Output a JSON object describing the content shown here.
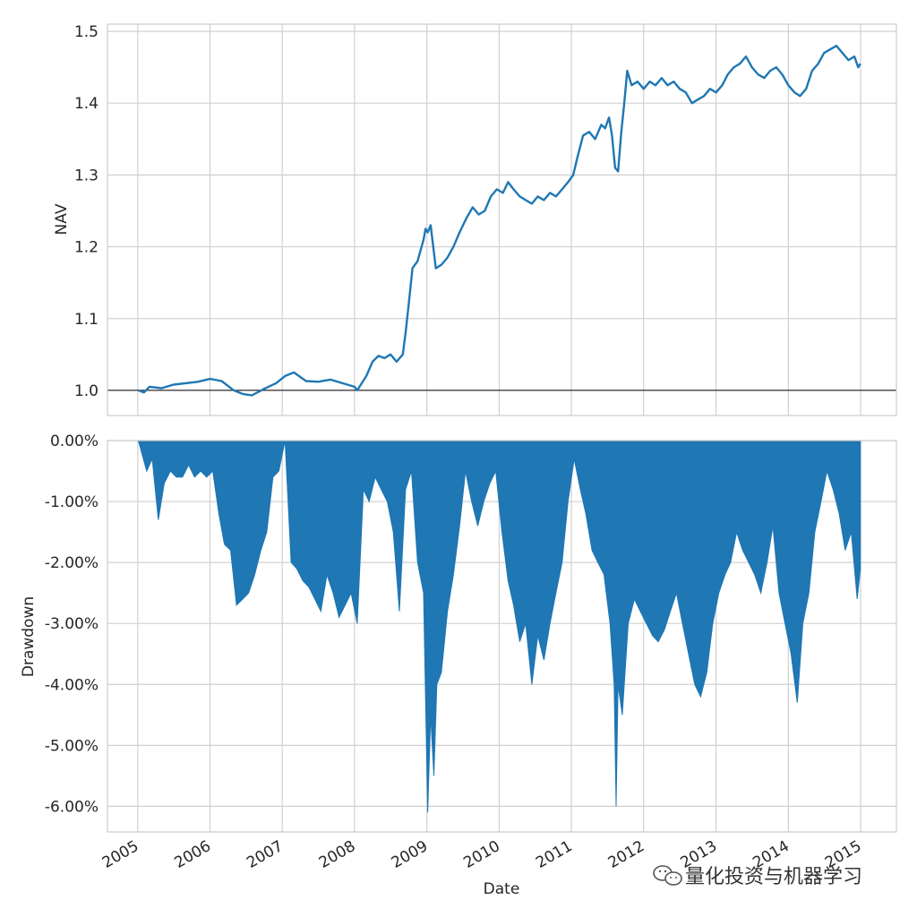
{
  "chart_data": [
    {
      "type": "line",
      "ylabel": "NAV",
      "xlim": [
        "2004-08-01",
        "2015-07-01"
      ],
      "ylim": [
        0.965,
        1.51
      ],
      "yticks": [
        1.0,
        1.1,
        1.2,
        1.3,
        1.4,
        1.5
      ],
      "ytick_labels": [
        "1.0",
        "1.1",
        "1.2",
        "1.3",
        "1.4",
        "1.5"
      ],
      "grid": true,
      "reference_line": 1.0,
      "color": "#1f77b4",
      "series": [
        {
          "dates": [
            "2005-01-04",
            "2005-02-01",
            "2005-03-01",
            "2005-05-01",
            "2005-07-01",
            "2005-09-01",
            "2005-11-01",
            "2006-01-01",
            "2006-03-01",
            "2006-05-01",
            "2006-06-15",
            "2006-08-01",
            "2006-10-01",
            "2006-12-01",
            "2007-01-15",
            "2007-03-01",
            "2007-05-01",
            "2007-07-01",
            "2007-09-01",
            "2007-11-01",
            "2008-01-01",
            "2008-01-15",
            "2008-03-01",
            "2008-04-01",
            "2008-05-01",
            "2008-06-01",
            "2008-07-01",
            "2008-08-01",
            "2008-09-01",
            "2008-09-15",
            "2008-10-01",
            "2008-10-20",
            "2008-11-15",
            "2008-12-15",
            "2008-12-25",
            "2009-01-05",
            "2009-01-20",
            "2009-02-15",
            "2009-03-15",
            "2009-04-15",
            "2009-05-15",
            "2009-06-15",
            "2009-07-20",
            "2009-08-20",
            "2009-09-20",
            "2009-10-20",
            "2009-11-20",
            "2009-12-20",
            "2010-01-20",
            "2010-02-15",
            "2010-03-15",
            "2010-04-15",
            "2010-05-15",
            "2010-06-15",
            "2010-07-15",
            "2010-08-15",
            "2010-09-15",
            "2010-10-15",
            "2010-11-15",
            "2010-12-15",
            "2011-01-10",
            "2011-02-01",
            "2011-03-01",
            "2011-04-01",
            "2011-05-01",
            "2011-06-01",
            "2011-06-20",
            "2011-07-10",
            "2011-07-25",
            "2011-08-10",
            "2011-08-25",
            "2011-09-10",
            "2011-09-25",
            "2011-10-10",
            "2011-11-01",
            "2011-12-01",
            "2012-01-01",
            "2012-02-01",
            "2012-03-01",
            "2012-04-01",
            "2012-05-01",
            "2012-06-01",
            "2012-07-01",
            "2012-08-01",
            "2012-09-01",
            "2012-10-01",
            "2012-11-01",
            "2012-12-01",
            "2013-01-01",
            "2013-02-01",
            "2013-03-01",
            "2013-04-01",
            "2013-05-01",
            "2013-06-01",
            "2013-07-01",
            "2013-08-01",
            "2013-09-01",
            "2013-10-01",
            "2013-11-01",
            "2013-12-01",
            "2014-01-01",
            "2014-02-01",
            "2014-03-01",
            "2014-04-01",
            "2014-05-01",
            "2014-06-01",
            "2014-07-01",
            "2014-08-01",
            "2014-09-01",
            "2014-10-01",
            "2014-11-01",
            "2014-12-01",
            "2014-12-20",
            "2014-12-31"
          ],
          "values": [
            1.0,
            0.997,
            1.005,
            1.003,
            1.008,
            1.01,
            1.012,
            1.016,
            1.013,
            1.0,
            0.995,
            0.993,
            1.002,
            1.01,
            1.02,
            1.025,
            1.013,
            1.012,
            1.015,
            1.01,
            1.005,
            1.0,
            1.02,
            1.04,
            1.048,
            1.045,
            1.05,
            1.04,
            1.05,
            1.08,
            1.12,
            1.17,
            1.18,
            1.21,
            1.225,
            1.22,
            1.23,
            1.17,
            1.175,
            1.185,
            1.2,
            1.22,
            1.24,
            1.255,
            1.245,
            1.25,
            1.27,
            1.28,
            1.275,
            1.29,
            1.28,
            1.27,
            1.265,
            1.26,
            1.27,
            1.265,
            1.275,
            1.27,
            1.28,
            1.29,
            1.3,
            1.325,
            1.355,
            1.36,
            1.35,
            1.37,
            1.365,
            1.38,
            1.355,
            1.31,
            1.305,
            1.36,
            1.4,
            1.445,
            1.425,
            1.43,
            1.42,
            1.43,
            1.425,
            1.435,
            1.425,
            1.43,
            1.42,
            1.415,
            1.4,
            1.405,
            1.41,
            1.42,
            1.415,
            1.425,
            1.44,
            1.45,
            1.455,
            1.465,
            1.45,
            1.44,
            1.435,
            1.445,
            1.45,
            1.44,
            1.425,
            1.415,
            1.41,
            1.42,
            1.445,
            1.455,
            1.47,
            1.475,
            1.48,
            1.47,
            1.46,
            1.465,
            1.45,
            1.455
          ]
        }
      ]
    },
    {
      "type": "area",
      "ylabel": "Drawdown",
      "xlabel": "Date",
      "xlim": [
        "2004-08-01",
        "2015-07-01"
      ],
      "ylim": [
        -0.0642,
        0.0
      ],
      "yticks": [
        0.0,
        -0.01,
        -0.02,
        -0.03,
        -0.04,
        -0.05,
        -0.06
      ],
      "ytick_labels": [
        "0.00%",
        "-1.00%",
        "-2.00%",
        "-3.00%",
        "-4.00%",
        "-5.00%",
        "-6.00%"
      ],
      "xticks": [
        "2005-01-01",
        "2006-01-01",
        "2007-01-01",
        "2008-01-01",
        "2009-01-01",
        "2010-01-01",
        "2011-01-01",
        "2012-01-01",
        "2013-01-01",
        "2014-01-01",
        "2015-01-01"
      ],
      "xtick_labels": [
        "2005",
        "2006",
        "2007",
        "2008",
        "2009",
        "2010",
        "2011",
        "2012",
        "2013",
        "2014",
        "2015"
      ],
      "grid": true,
      "color": "#1f77b4",
      "series": [
        {
          "dates": [
            "2005-01-04",
            "2005-02-15",
            "2005-03-15",
            "2005-04-15",
            "2005-05-15",
            "2005-06-15",
            "2005-07-15",
            "2005-08-15",
            "2005-09-15",
            "2005-10-15",
            "2005-11-15",
            "2005-12-15",
            "2006-01-15",
            "2006-02-15",
            "2006-03-15",
            "2006-04-15",
            "2006-05-15",
            "2006-06-15",
            "2006-07-15",
            "2006-08-15",
            "2006-09-15",
            "2006-10-15",
            "2006-11-15",
            "2006-12-15",
            "2007-01-15",
            "2007-02-15",
            "2007-03-15",
            "2007-04-15",
            "2007-05-15",
            "2007-06-15",
            "2007-07-15",
            "2007-08-15",
            "2007-09-15",
            "2007-10-15",
            "2007-11-15",
            "2007-12-15",
            "2008-01-15",
            "2008-02-15",
            "2008-03-15",
            "2008-04-15",
            "2008-05-15",
            "2008-06-15",
            "2008-07-15",
            "2008-08-15",
            "2008-09-15",
            "2008-10-15",
            "2008-11-15",
            "2008-12-15",
            "2009-01-05",
            "2009-01-20",
            "2009-02-05",
            "2009-02-20",
            "2009-03-15",
            "2009-04-15",
            "2009-05-15",
            "2009-06-15",
            "2009-07-15",
            "2009-08-15",
            "2009-09-15",
            "2009-10-15",
            "2009-11-15",
            "2009-12-15",
            "2010-01-15",
            "2010-02-15",
            "2010-03-15",
            "2010-04-15",
            "2010-05-15",
            "2010-06-15",
            "2010-07-15",
            "2010-08-15",
            "2010-09-15",
            "2010-10-15",
            "2010-11-15",
            "2010-12-15",
            "2011-01-15",
            "2011-02-15",
            "2011-03-15",
            "2011-04-15",
            "2011-05-15",
            "2011-06-15",
            "2011-07-15",
            "2011-08-05",
            "2011-08-15",
            "2011-08-25",
            "2011-09-15",
            "2011-10-15",
            "2011-11-15",
            "2011-12-15",
            "2012-01-15",
            "2012-02-15",
            "2012-03-15",
            "2012-04-15",
            "2012-05-15",
            "2012-06-15",
            "2012-07-15",
            "2012-08-15",
            "2012-09-15",
            "2012-10-15",
            "2012-11-15",
            "2012-12-15",
            "2013-01-15",
            "2013-02-15",
            "2013-03-15",
            "2013-04-15",
            "2013-05-15",
            "2013-06-15",
            "2013-07-15",
            "2013-08-15",
            "2013-09-15",
            "2013-10-15",
            "2013-11-15",
            "2013-12-15",
            "2014-01-15",
            "2014-02-15",
            "2014-03-15",
            "2014-04-15",
            "2014-05-15",
            "2014-06-15",
            "2014-07-15",
            "2014-08-15",
            "2014-09-15",
            "2014-10-15",
            "2014-11-15",
            "2014-12-15",
            "2014-12-31"
          ],
          "values": [
            0.0,
            -0.005,
            -0.003,
            -0.013,
            -0.007,
            -0.005,
            -0.006,
            -0.006,
            -0.004,
            -0.006,
            -0.005,
            -0.006,
            -0.005,
            -0.012,
            -0.017,
            -0.018,
            -0.027,
            -0.026,
            -0.025,
            -0.022,
            -0.018,
            -0.015,
            -0.006,
            -0.005,
            0.0,
            -0.02,
            -0.021,
            -0.023,
            -0.024,
            -0.026,
            -0.028,
            -0.022,
            -0.025,
            -0.029,
            -0.027,
            -0.025,
            -0.03,
            -0.008,
            -0.01,
            -0.006,
            -0.008,
            -0.01,
            -0.015,
            -0.028,
            -0.008,
            -0.005,
            -0.02,
            -0.025,
            -0.061,
            -0.045,
            -0.055,
            -0.04,
            -0.038,
            -0.028,
            -0.022,
            -0.014,
            -0.005,
            -0.01,
            -0.014,
            -0.01,
            -0.007,
            -0.005,
            -0.015,
            -0.023,
            -0.027,
            -0.033,
            -0.03,
            -0.04,
            -0.032,
            -0.036,
            -0.03,
            -0.025,
            -0.02,
            -0.01,
            -0.003,
            -0.008,
            -0.012,
            -0.018,
            -0.02,
            -0.022,
            -0.03,
            -0.04,
            -0.06,
            -0.04,
            -0.045,
            -0.03,
            -0.026,
            -0.028,
            -0.03,
            -0.032,
            -0.033,
            -0.031,
            -0.028,
            -0.025,
            -0.03,
            -0.035,
            -0.04,
            -0.042,
            -0.038,
            -0.03,
            -0.025,
            -0.022,
            -0.02,
            -0.015,
            -0.018,
            -0.02,
            -0.022,
            -0.025,
            -0.02,
            -0.014,
            -0.025,
            -0.03,
            -0.035,
            -0.043,
            -0.03,
            -0.025,
            -0.015,
            -0.01,
            -0.005,
            -0.008,
            -0.012,
            -0.018,
            -0.015,
            -0.026,
            -0.021
          ]
        }
      ]
    }
  ],
  "watermark": {
    "text": "量化投资与机器学习",
    "icon": "wechat-logo-icon"
  }
}
